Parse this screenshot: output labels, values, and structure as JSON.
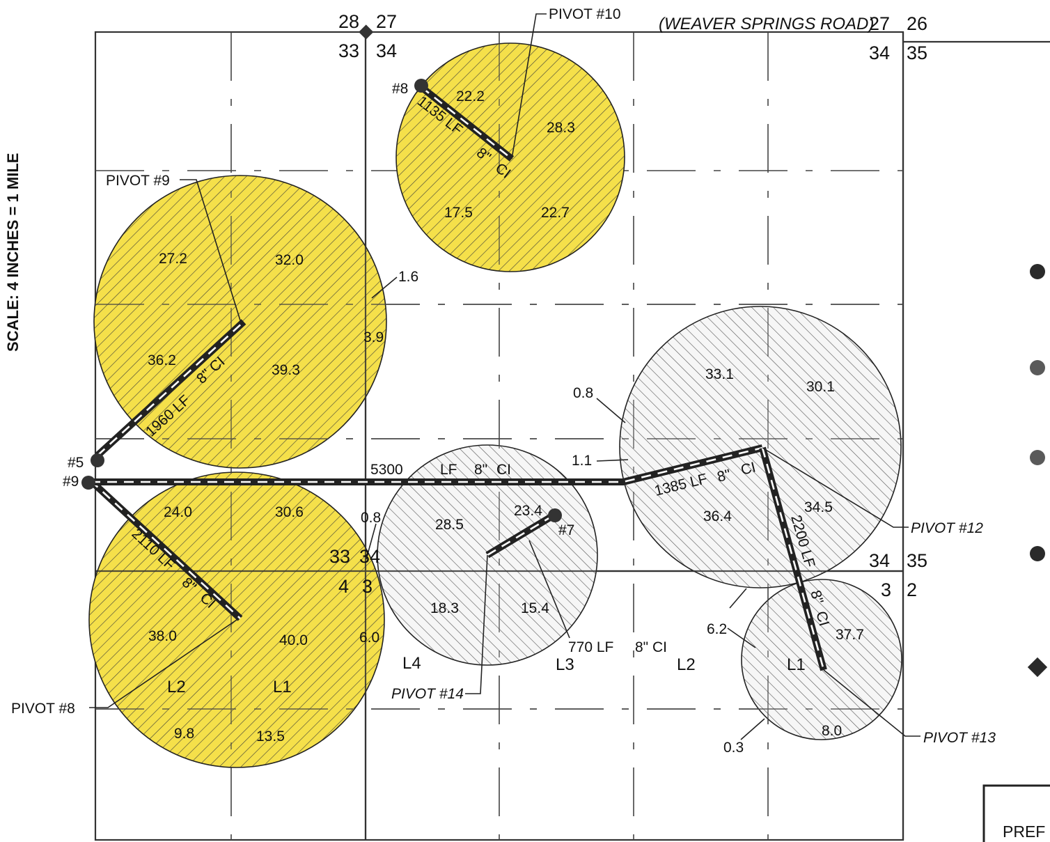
{
  "colors": {
    "hatch_line": "#555555",
    "yellow_fill": "#f5e04a",
    "grey_fill": "#f4f4f4",
    "pipe": "#222222"
  },
  "scale_label": "SCALE: 4 INCHES = 1 MILE",
  "road_label": "(WEAVER SPRINGS ROAD)",
  "section_corners": {
    "nw_top": [
      "28",
      "27"
    ],
    "nw_bottom": [
      "33",
      "34"
    ],
    "ne_top": [
      "27",
      "26"
    ],
    "ne_bottom": [
      "34",
      "35"
    ],
    "se_top": [
      "34",
      "35"
    ],
    "se_bottom": [
      "3",
      "2"
    ],
    "sw_top": [
      "33",
      "34"
    ],
    "sw_bottom": [
      "4",
      "3"
    ]
  },
  "pivot_labels": {
    "p10": "PIVOT #10",
    "p9": "PIVOT #9",
    "p8": "PIVOT #8",
    "p12": "PIVOT #12",
    "p13": "PIVOT #13",
    "p14": "PIVOT #14"
  },
  "well_labels": {
    "w8": "#8",
    "w5": "#5",
    "w9": "#9",
    "w7": "#7"
  },
  "pipe_labels": {
    "p1135": "1135 LF",
    "p1135_b": "8\"",
    "p1135_c": "CI",
    "p1960": "1960 LF",
    "p1960_b": "8\" CI",
    "p2110": "2110 LF",
    "p2110_b": "8\"",
    "p2110_c": "CI",
    "p5300": "5300",
    "p5300_b": "LF",
    "p5300_c": "8\"",
    "p5300_d": "CI",
    "p1385": "1385 LF",
    "p1385_b": "8\"",
    "p1385_c": "CI",
    "p2200": "2200 LF",
    "p2200_b": "8\"",
    "p2200_c": "CI",
    "p770": "770 LF",
    "p770_b": "8\" CI"
  },
  "acreages": {
    "a222": "22.2",
    "a283": "28.3",
    "a175": "17.5",
    "a227": "22.7",
    "a272": "27.2",
    "a320": "32.0",
    "a16": "1.6",
    "a39": "3.9",
    "a362": "36.2",
    "a393": "39.3",
    "a240": "24.0",
    "a306": "30.6",
    "a08a": "0.8",
    "a380": "38.0",
    "a400": "40.0",
    "a60": "6.0",
    "a98": "9.8",
    "a135": "13.5",
    "a285": "28.5",
    "a234": "23.4",
    "a183": "18.3",
    "a154": "15.4",
    "a331": "33.1",
    "a301": "30.1",
    "a08b": "0.8",
    "a11": "1.1",
    "a364": "36.4",
    "a345": "34.5",
    "a62": "6.2",
    "a377": "37.7",
    "a80": "8.0",
    "a03": "0.3"
  },
  "lot_labels": {
    "l4": "L4",
    "l3": "L3",
    "l2a": "L2",
    "l1a": "L1",
    "l2b": "L2",
    "l1b": "L1"
  },
  "title_block_text": "PREF"
}
